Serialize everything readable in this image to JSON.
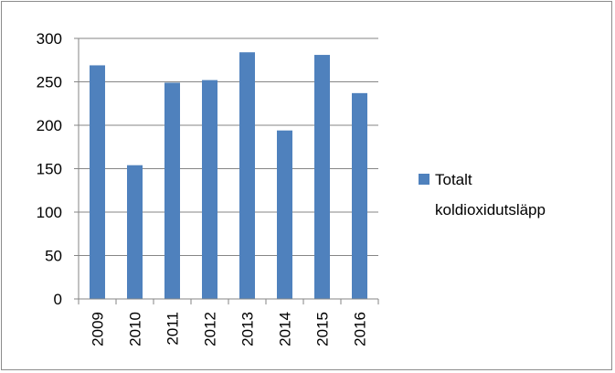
{
  "chart_data": {
    "type": "bar",
    "categories": [
      "2009",
      "2010",
      "2011",
      "2012",
      "2013",
      "2014",
      "2015",
      "2016"
    ],
    "series": [
      {
        "name": "Totalt koldioxidutsläpp",
        "values": [
          269,
          154,
          249,
          252,
          284,
          194,
          281,
          237
        ],
        "color": "#4f81bd"
      }
    ],
    "ylim": [
      0,
      300
    ],
    "yticks": [
      0,
      50,
      100,
      150,
      200,
      250,
      300
    ],
    "grid": true,
    "legend_position": "right",
    "legend_lines": [
      "Totalt",
      "koldioxidutsläpp"
    ]
  }
}
